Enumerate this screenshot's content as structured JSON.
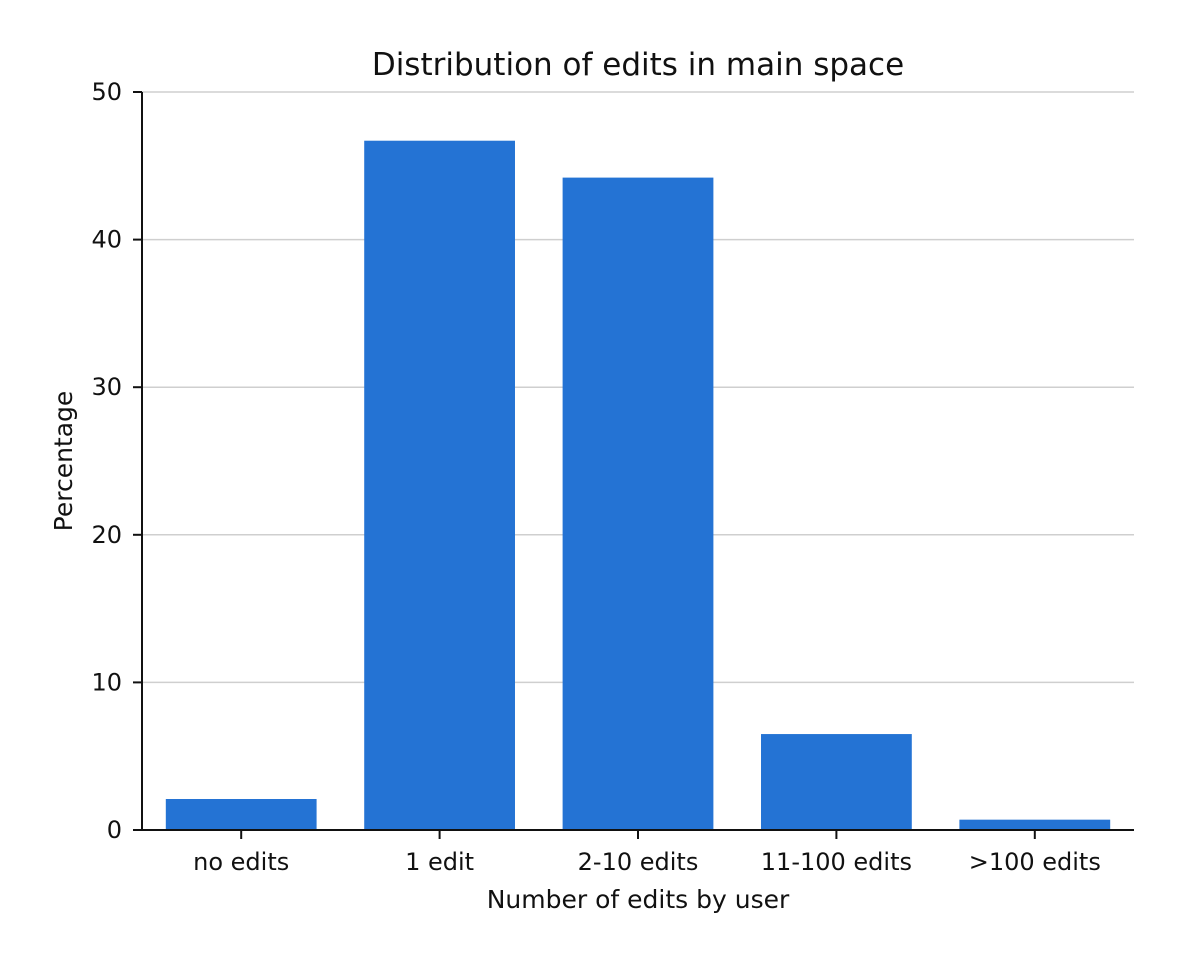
{
  "chart_data": {
    "type": "bar",
    "title": "Distribution of edits in main space",
    "xlabel": "Number of edits by user",
    "ylabel": "Percentage",
    "categories": [
      "no edits",
      "1 edit",
      "2-10 edits",
      "11-100 edits",
      ">100 edits"
    ],
    "values": [
      2.1,
      46.7,
      44.2,
      6.5,
      0.7
    ],
    "ylim": [
      0,
      50
    ],
    "yticks": [
      0,
      10,
      20,
      30,
      40,
      50
    ],
    "ytick_labels": [
      "0",
      "10",
      "20",
      "30",
      "40",
      "50"
    ],
    "grid": true,
    "bar_color": "#2473d4",
    "grid_color": "#cfcfcf"
  }
}
